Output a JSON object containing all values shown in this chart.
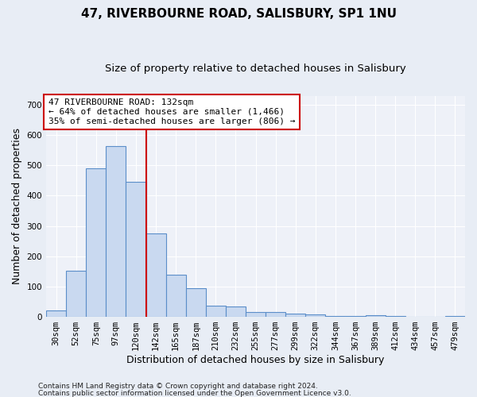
{
  "title1": "47, RIVERBOURNE ROAD, SALISBURY, SP1 1NU",
  "title2": "Size of property relative to detached houses in Salisbury",
  "xlabel": "Distribution of detached houses by size in Salisbury",
  "ylabel": "Number of detached properties",
  "bin_labels": [
    "30sqm",
    "52sqm",
    "75sqm",
    "97sqm",
    "120sqm",
    "142sqm",
    "165sqm",
    "187sqm",
    "210sqm",
    "232sqm",
    "255sqm",
    "277sqm",
    "299sqm",
    "322sqm",
    "344sqm",
    "367sqm",
    "389sqm",
    "412sqm",
    "434sqm",
    "457sqm",
    "479sqm"
  ],
  "bar_heights": [
    22,
    153,
    490,
    565,
    445,
    275,
    140,
    95,
    37,
    35,
    17,
    17,
    11,
    7,
    3,
    3,
    5,
    3,
    1,
    1,
    4
  ],
  "bar_color": "#c9d9f0",
  "bar_edge_color": "#5b8ec9",
  "vline_color": "#cc0000",
  "annotation_text": "47 RIVERBOURNE ROAD: 132sqm\n← 64% of detached houses are smaller (1,466)\n35% of semi-detached houses are larger (806) →",
  "annotation_box_color": "#ffffff",
  "annotation_box_edge": "#cc0000",
  "ylim": [
    0,
    730
  ],
  "yticks": [
    0,
    100,
    200,
    300,
    400,
    500,
    600,
    700
  ],
  "footnote1": "Contains HM Land Registry data © Crown copyright and database right 2024.",
  "footnote2": "Contains public sector information licensed under the Open Government Licence v3.0.",
  "bg_color": "#e8edf5",
  "plot_bg_color": "#eef1f8",
  "grid_color": "#ffffff",
  "title1_fontsize": 11,
  "title2_fontsize": 9.5,
  "tick_fontsize": 7.5,
  "label_fontsize": 9,
  "annot_fontsize": 8,
  "footnote_fontsize": 6.5
}
